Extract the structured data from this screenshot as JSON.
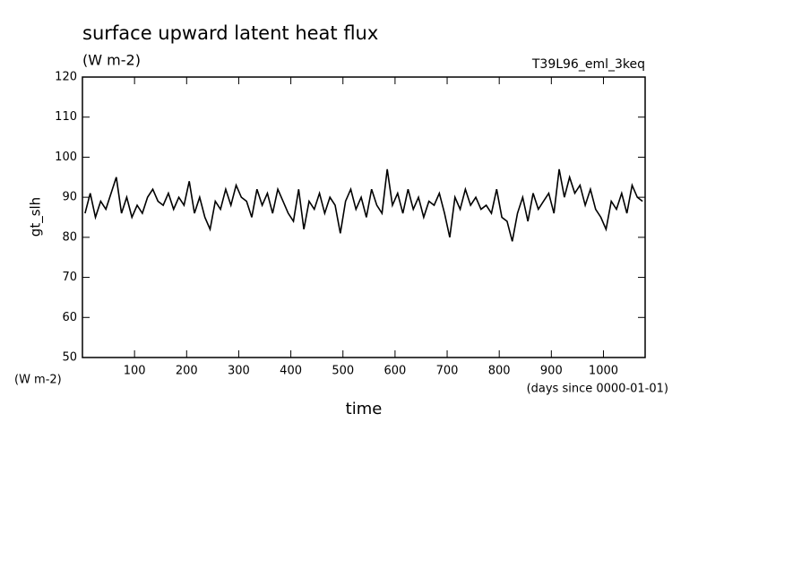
{
  "chart_data": {
    "type": "line",
    "title": "surface upward latent heat flux",
    "units": "(W m-2)",
    "run_label": "T39L96_eml_3keq",
    "ylabel": "gt_slh",
    "yunits": "(W m-2)",
    "xlabel": "time",
    "xunits": "(days since 0000-01-01)",
    "x": [
      5,
      15,
      25,
      35,
      45,
      55,
      65,
      75,
      85,
      95,
      105,
      115,
      125,
      135,
      145,
      155,
      165,
      175,
      185,
      195,
      205,
      215,
      225,
      235,
      245,
      255,
      265,
      275,
      285,
      295,
      305,
      315,
      325,
      335,
      345,
      355,
      365,
      375,
      385,
      395,
      405,
      415,
      425,
      435,
      445,
      455,
      465,
      475,
      485,
      495,
      505,
      515,
      525,
      535,
      545,
      555,
      565,
      575,
      585,
      595,
      605,
      615,
      625,
      635,
      645,
      655,
      665,
      675,
      685,
      695,
      705,
      715,
      725,
      735,
      745,
      755,
      765,
      775,
      785,
      795,
      805,
      815,
      825,
      835,
      845,
      855,
      865,
      875,
      885,
      895,
      905,
      915,
      925,
      935,
      945,
      955,
      965,
      975,
      985,
      995,
      1005,
      1015,
      1025,
      1035,
      1045,
      1055,
      1065,
      1075
    ],
    "series": [
      {
        "color": "#000000",
        "values": [
          86,
          91,
          85,
          89,
          87,
          91,
          95,
          86,
          90,
          85,
          88,
          86,
          90,
          92,
          89,
          88,
          91,
          87,
          90,
          88,
          94,
          86,
          90,
          85,
          82,
          89,
          87,
          92,
          88,
          93,
          90,
          89,
          85,
          92,
          88,
          91,
          86,
          92,
          89,
          86,
          84,
          92,
          82,
          89,
          87,
          91,
          86,
          90,
          88,
          81,
          89,
          92,
          87,
          90,
          85,
          92,
          88,
          86,
          97,
          88,
          91,
          86,
          92,
          87,
          90,
          85,
          89,
          88,
          91,
          86,
          80,
          90,
          87,
          92,
          88,
          90,
          87,
          88,
          86,
          92,
          85,
          84,
          79,
          86,
          90,
          84,
          91,
          87,
          89,
          91,
          86,
          97,
          90,
          95,
          91,
          93,
          88,
          92,
          87,
          85,
          82,
          89,
          87,
          91,
          86,
          93,
          90,
          89
        ]
      }
    ],
    "xlim": [
      0,
      1080
    ],
    "xticks": [
      100,
      200,
      300,
      400,
      500,
      600,
      700,
      800,
      900,
      1000
    ],
    "ylim": [
      50,
      120
    ],
    "yticks": [
      50,
      60,
      70,
      80,
      90,
      100,
      110,
      120
    ]
  }
}
